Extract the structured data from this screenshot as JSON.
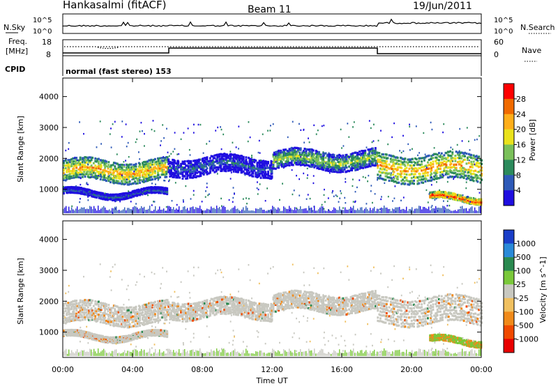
{
  "header": {
    "station": "Hankasalmi (fitACF)",
    "beam": "Beam 11",
    "date": "19/Jun/2011"
  },
  "noise_panel": {
    "left_label": "N.Sky",
    "right_label": "N.Search",
    "left_ticks": [
      "10^5",
      "10^0"
    ],
    "right_ticks": [
      "10^5",
      "10^0"
    ]
  },
  "freq_panel": {
    "left_label_1": "Freq.",
    "left_label_2": "[MHz]",
    "left_ticks": [
      "18",
      "8"
    ],
    "right_ticks": [
      "60",
      "0"
    ],
    "right_label": "Nave",
    "freq_level_mhz": 12,
    "nave_level": 30
  },
  "cpid_panel": {
    "label": "CPID",
    "text": "normal (fast stereo) 153"
  },
  "chart_data": [
    {
      "type": "heatmap",
      "name": "power",
      "xlabel": "Time UT",
      "ylabel": "Slant Range [km]",
      "xlim": [
        0,
        24
      ],
      "ylim": [
        180,
        4600
      ],
      "yticks": [
        "4000",
        "3000",
        "2000",
        "1000"
      ],
      "colorbar": {
        "label": "Power [dB]",
        "ticks": [
          "28",
          "24",
          "20",
          "16",
          "12",
          "8",
          "4"
        ],
        "colors": [
          "#ff0000",
          "#f06a00",
          "#ffae1a",
          "#eae21c",
          "#7ac05a",
          "#2c8a5c",
          "#2e5ab8",
          "#1f0ee0"
        ]
      },
      "echo_bands": [
        {
          "t_start": 0.0,
          "t_end": 6.0,
          "range_km": [
            1300,
            2000
          ],
          "level": "strong"
        },
        {
          "t_start": 0.0,
          "t_end": 6.0,
          "range_km": [
            800,
            1000
          ],
          "level": "weak"
        },
        {
          "t_start": 6.0,
          "t_end": 12.0,
          "range_km": [
            1500,
            2100
          ],
          "level": "weak"
        },
        {
          "t_start": 12.0,
          "t_end": 18.0,
          "range_km": [
            1700,
            2300
          ],
          "level": "moderate"
        },
        {
          "t_start": 18.0,
          "t_end": 24.0,
          "range_km": [
            1300,
            2200
          ],
          "level": "strong"
        },
        {
          "t_start": 21.0,
          "t_end": 24.0,
          "range_km": [
            650,
            850
          ],
          "level": "very strong"
        }
      ]
    },
    {
      "type": "heatmap",
      "name": "velocity",
      "xlabel": "Time UT",
      "ylabel": "Slant Range [km]",
      "xlim": [
        0,
        24
      ],
      "ylim": [
        180,
        4600
      ],
      "yticks": [
        "4000",
        "3000",
        "2000",
        "1000"
      ],
      "xticks": [
        "00:00",
        "04:00",
        "08:00",
        "12:00",
        "16:00",
        "20:00",
        "00:00"
      ],
      "colorbar": {
        "label": "Velocity [m s^-1]",
        "ticks": [
          "1000",
          "500",
          "100",
          "25",
          "-25",
          "-100",
          "-500",
          "-1000"
        ],
        "colors": [
          "#1a3ec8",
          "#2a8ad8",
          "#2a8a50",
          "#7ac83a",
          "#c8c8c0",
          "#f0c060",
          "#f08a1a",
          "#f04a00",
          "#e80000"
        ]
      }
    }
  ]
}
